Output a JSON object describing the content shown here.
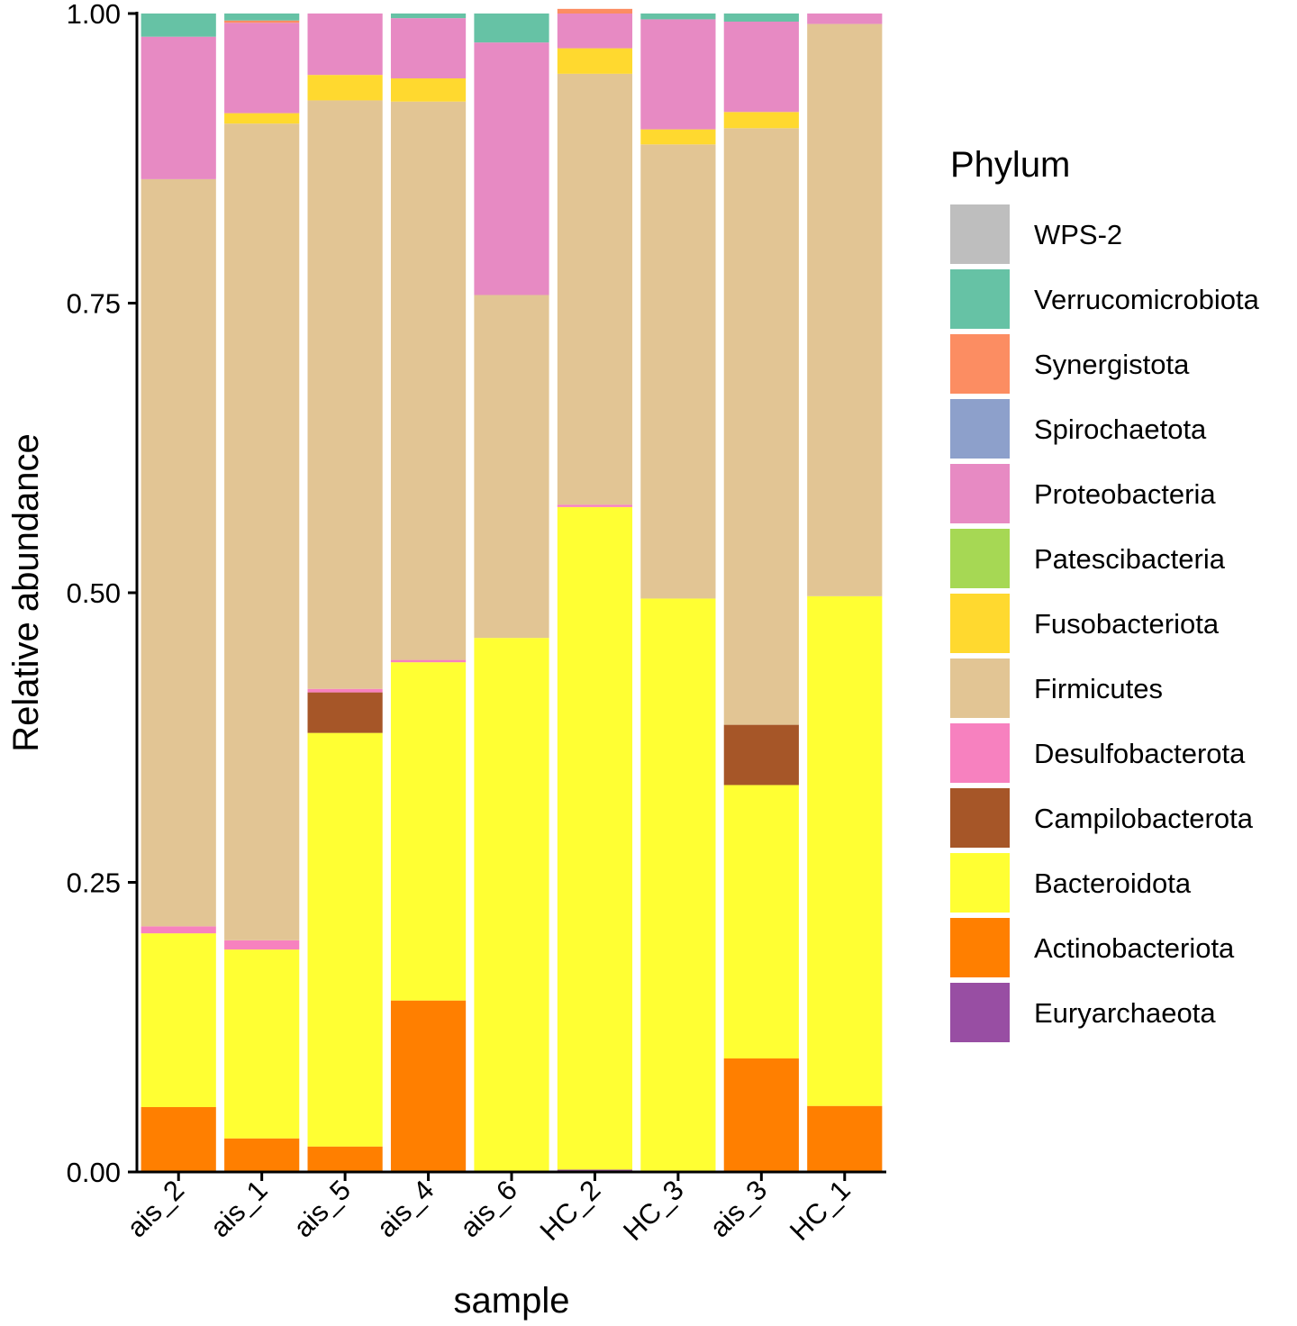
{
  "chart_data": {
    "type": "bar",
    "stacked": true,
    "title": "",
    "xlabel": "sample",
    "ylabel": "Relative abundance",
    "ylim": [
      0,
      1
    ],
    "yticks": [
      0.0,
      0.25,
      0.5,
      0.75,
      1.0
    ],
    "ytick_labels": [
      "0.00",
      "0.25",
      "0.50",
      "0.75",
      "1.00"
    ],
    "categories": [
      "ais_2",
      "ais_1",
      "ais_5",
      "ais_4",
      "ais_6",
      "HC_2",
      "HC_3",
      "ais_3",
      "HC_1"
    ],
    "legend": {
      "title": "Phylum",
      "position": "right"
    },
    "series": [
      {
        "name": "Euryarchaeota",
        "color": "#984EA3",
        "values": [
          0.0,
          0.0,
          0.0,
          0.0,
          0.0,
          0.002,
          0.0,
          0.0,
          0.0
        ]
      },
      {
        "name": "Actinobacteriota",
        "color": "#FF7F00",
        "values": [
          0.056,
          0.029,
          0.022,
          0.148,
          0.0,
          0.0,
          0.0,
          0.098,
          0.057
        ]
      },
      {
        "name": "Bacteroidota",
        "color": "#FFFF33",
        "values": [
          0.15,
          0.163,
          0.357,
          0.292,
          0.461,
          0.572,
          0.495,
          0.236,
          0.44
        ]
      },
      {
        "name": "Campilobacterota",
        "color": "#A65628",
        "values": [
          0.0,
          0.0,
          0.035,
          0.0,
          0.0,
          0.0,
          0.0,
          0.052,
          0.0
        ]
      },
      {
        "name": "Desulfobacterota",
        "color": "#F781BF",
        "values": [
          0.006,
          0.008,
          0.003,
          0.002,
          0.0,
          0.002,
          0.0,
          0.0,
          0.0
        ]
      },
      {
        "name": "Firmicutes",
        "color": "#E2C594",
        "values": [
          0.645,
          0.705,
          0.508,
          0.482,
          0.296,
          0.372,
          0.392,
          0.515,
          0.494
        ]
      },
      {
        "name": "Fusobacteriota",
        "color": "#FFD92F",
        "values": [
          0.0,
          0.009,
          0.022,
          0.02,
          0.0,
          0.022,
          0.013,
          0.014,
          0.0
        ]
      },
      {
        "name": "Patescibacteria",
        "color": "#A6D854",
        "values": [
          0.0,
          0.0,
          0.0,
          0.0,
          0.0,
          0.0,
          0.0,
          0.0,
          0.0
        ]
      },
      {
        "name": "Proteobacteria",
        "color": "#E78AC3",
        "values": [
          0.123,
          0.078,
          0.053,
          0.052,
          0.218,
          0.03,
          0.095,
          0.078,
          0.009
        ]
      },
      {
        "name": "Spirochaetota",
        "color": "#8DA0CB",
        "values": [
          0.0,
          0.0,
          0.0,
          0.0,
          0.0,
          0.0,
          0.0,
          0.0,
          0.0
        ]
      },
      {
        "name": "Synergistota",
        "color": "#FC8D62",
        "values": [
          0.0,
          0.002,
          0.0,
          0.0,
          0.0,
          0.004,
          0.0,
          0.0,
          0.0
        ]
      },
      {
        "name": "Verrucomicrobiota",
        "color": "#66C2A5",
        "values": [
          0.02,
          0.006,
          0.0,
          0.004,
          0.025,
          0.0,
          0.005,
          0.007,
          0.0
        ]
      },
      {
        "name": "WPS-2",
        "color": "#BEBEBE",
        "values": [
          0.0,
          0.0,
          0.0,
          0.0,
          0.0,
          0.0,
          0.0,
          0.0,
          0.0
        ]
      }
    ]
  }
}
